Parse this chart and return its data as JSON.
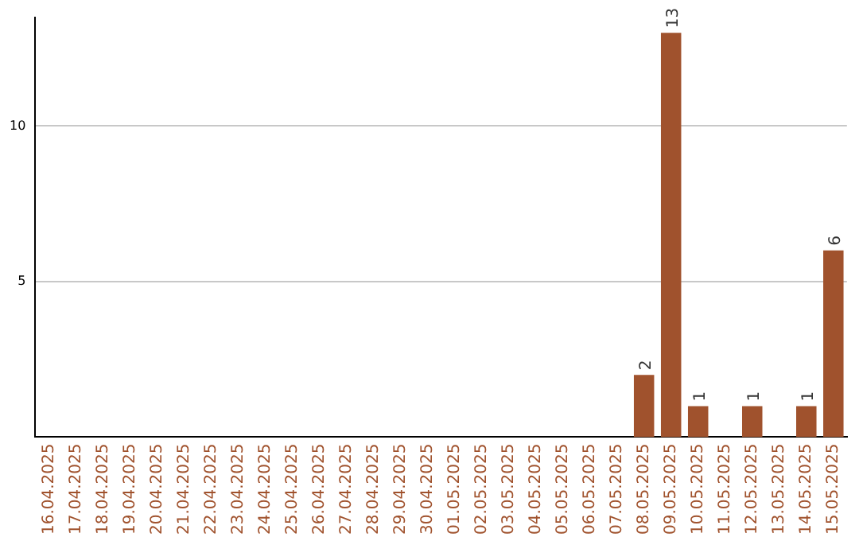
{
  "chart_data": {
    "type": "bar",
    "categories": [
      "16.04.2025",
      "17.04.2025",
      "18.04.2025",
      "19.04.2025",
      "20.04.2025",
      "21.04.2025",
      "22.04.2025",
      "23.04.2025",
      "24.04.2025",
      "25.04.2025",
      "26.04.2025",
      "27.04.2025",
      "28.04.2025",
      "29.04.2025",
      "30.04.2025",
      "01.05.2025",
      "02.05.2025",
      "03.05.2025",
      "04.05.2025",
      "05.05.2025",
      "06.05.2025",
      "07.05.2025",
      "08.05.2025",
      "09.05.2025",
      "10.05.2025",
      "11.05.2025",
      "12.05.2025",
      "13.05.2025",
      "14.05.2025",
      "15.05.2025"
    ],
    "values": [
      0,
      0,
      0,
      0,
      0,
      0,
      0,
      0,
      0,
      0,
      0,
      0,
      0,
      0,
      0,
      0,
      0,
      0,
      0,
      0,
      0,
      0,
      2,
      13,
      1,
      0,
      1,
      0,
      1,
      6
    ],
    "value_labels": [
      null,
      null,
      null,
      null,
      null,
      null,
      null,
      null,
      null,
      null,
      null,
      null,
      null,
      null,
      null,
      null,
      null,
      null,
      null,
      null,
      null,
      null,
      "2",
      "13",
      "1",
      null,
      "1",
      null,
      "1",
      "6"
    ],
    "color": "#a0522d",
    "ylim": [
      0,
      13.5
    ],
    "yticks": [
      5,
      10
    ],
    "grid": "y",
    "legend": false
  }
}
